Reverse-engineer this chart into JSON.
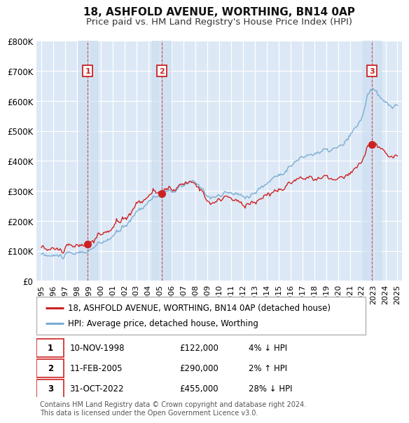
{
  "title": "18, ASHFOLD AVENUE, WORTHING, BN14 0AP",
  "subtitle": "Price paid vs. HM Land Registry's House Price Index (HPI)",
  "ylim": [
    0,
    800000
  ],
  "yticks": [
    0,
    100000,
    200000,
    300000,
    400000,
    500000,
    600000,
    700000,
    800000
  ],
  "ytick_labels": [
    "£0",
    "£100K",
    "£200K",
    "£300K",
    "£400K",
    "£500K",
    "£600K",
    "£700K",
    "£800K"
  ],
  "hpi_color": "#7aadd4",
  "price_color": "#cc2222",
  "vline_color": "#cc3333",
  "background_color": "#ffffff",
  "plot_bg_color": "#dce8f5",
  "grid_color": "#ffffff",
  "shade_color": "#dce8f5",
  "sale_dates": [
    1998.92,
    2005.12,
    2022.83
  ],
  "sale_prices": [
    122000,
    290000,
    455000
  ],
  "sale_labels": [
    "1",
    "2",
    "3"
  ],
  "legend_line1": "18, ASHFOLD AVENUE, WORTHING, BN14 0AP (detached house)",
  "legend_line2": "HPI: Average price, detached house, Worthing",
  "table_rows": [
    {
      "num": "1",
      "date": "10-NOV-1998",
      "price": "£122,000",
      "hpi": "4% ↓ HPI"
    },
    {
      "num": "2",
      "date": "11-FEB-2005",
      "price": "£290,000",
      "hpi": "2% ↑ HPI"
    },
    {
      "num": "3",
      "date": "31-OCT-2022",
      "price": "£455,000",
      "hpi": "28% ↓ HPI"
    }
  ],
  "footnote": "Contains HM Land Registry data © Crown copyright and database right 2024.\nThis data is licensed under the Open Government Licence v3.0.",
  "title_fontsize": 11,
  "subtitle_fontsize": 9.5,
  "tick_fontsize": 8.5,
  "legend_fontsize": 8.5,
  "table_fontsize": 8.5,
  "footnote_fontsize": 7
}
